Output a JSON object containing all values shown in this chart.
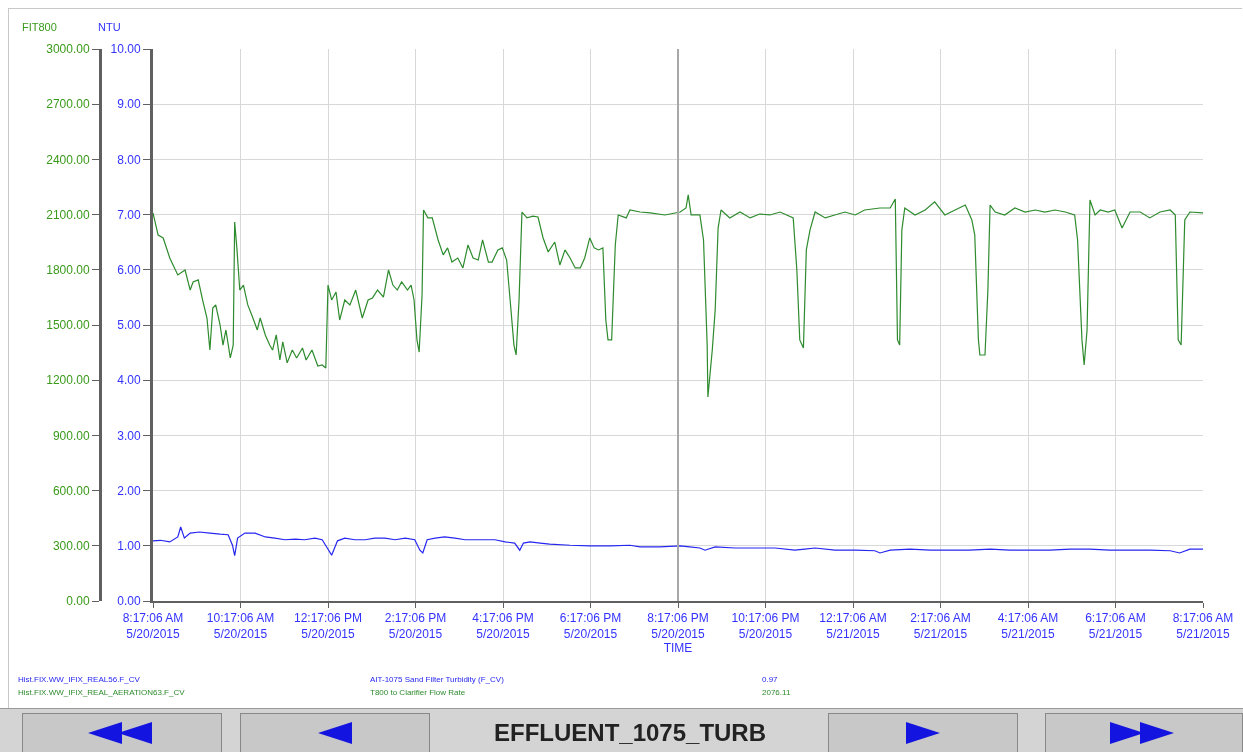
{
  "chart_data": {
    "type": "line",
    "xlabel": "TIME",
    "ylabel": "FIT800",
    "y2label": "NTU",
    "xlim": [
      "2015-05-20T08:17",
      "2015-05-21T08:17"
    ],
    "xticks": [
      {
        "value": "2015-05-20T08:17",
        "label": "8:17:06 AM\n5/20/2015"
      },
      {
        "value": "2015-05-20T10:17",
        "label": "10:17:06 AM\n5/20/2015"
      },
      {
        "value": "2015-05-20T12:17",
        "label": "12:17:06 PM\n5/20/2015"
      },
      {
        "value": "2015-05-20T14:17",
        "label": "2:17:06 PM\n5/20/2015"
      },
      {
        "value": "2015-05-20T16:17",
        "label": "4:17:06 PM\n5/20/2015"
      },
      {
        "value": "2015-05-20T18:17",
        "label": "6:17:06 PM\n5/20/2015"
      },
      {
        "value": "2015-05-20T20:17",
        "label": "8:17:06 PM\n5/20/2015"
      },
      {
        "value": "2015-05-20T22:17",
        "label": "10:17:06 PM\n5/20/2015"
      },
      {
        "value": "2015-05-21T00:17",
        "label": "12:17:06 AM\n5/21/2015"
      },
      {
        "value": "2015-05-21T02:17",
        "label": "2:17:06 AM\n5/21/2015"
      },
      {
        "value": "2015-05-21T04:17",
        "label": "4:17:06 AM\n5/21/2015"
      },
      {
        "value": "2015-05-21T06:17",
        "label": "6:17:06 AM\n5/21/2015"
      },
      {
        "value": "2015-05-21T08:17",
        "label": "8:17:06 AM\n5/21/2015"
      }
    ],
    "ylim": [
      0,
      3000
    ],
    "yticks": [
      {
        "value": 0,
        "label": "0.00"
      },
      {
        "value": 300,
        "label": "300.00"
      },
      {
        "value": 600,
        "label": "600.00"
      },
      {
        "value": 900,
        "label": "900.00"
      },
      {
        "value": 1200,
        "label": "1200.00"
      },
      {
        "value": 1500,
        "label": "1500.00"
      },
      {
        "value": 1800,
        "label": "1800.00"
      },
      {
        "value": 2100,
        "label": "2100.00"
      },
      {
        "value": 2400,
        "label": "2400.00"
      },
      {
        "value": 2700,
        "label": "2700.00"
      },
      {
        "value": 3000,
        "label": "3000.00"
      }
    ],
    "y2lim": [
      0,
      10
    ],
    "y2ticks": [
      {
        "value": 0,
        "label": "0.00"
      },
      {
        "value": 1,
        "label": "1.00"
      },
      {
        "value": 2,
        "label": "2.00"
      },
      {
        "value": 3,
        "label": "3.00"
      },
      {
        "value": 4,
        "label": "4.00"
      },
      {
        "value": 5,
        "label": "5.00"
      },
      {
        "value": 6,
        "label": "6.00"
      },
      {
        "value": 7,
        "label": "7.00"
      },
      {
        "value": 8,
        "label": "8.00"
      },
      {
        "value": 9,
        "label": "9.00"
      },
      {
        "value": 10,
        "label": "10.00"
      }
    ],
    "grid": true,
    "legend": "bottom",
    "marker": "none",
    "line_style": "solid",
    "ref_lines": [
      {
        "axis": "x",
        "value": "2015-05-20T20:17",
        "color": "#a8a8a8"
      }
    ],
    "annotations": [
      "Hist.FIX.WW_IFIX_REAL56.F_CV",
      "0.97",
      "Hist.FIX.WW_IFIX_REAL_AERATION63.F_CV",
      "2076.11",
      "EFFLUENT_1075_TURB"
    ],
    "series": [
      {
        "name": "AIT-1075 Sand Filter Turbidity (F_CV)",
        "color": "#2626f0",
        "axis": "y2",
        "x": [
          "2015-05-20T08:17",
          "2015-05-20T08:27",
          "2015-05-20T08:40",
          "2015-05-20T08:51",
          "2015-05-20T08:55",
          "2015-05-20T09:00",
          "2015-05-20T09:08",
          "2015-05-20T09:21",
          "2015-05-20T09:35",
          "2015-05-20T09:49",
          "2015-05-20T10:00",
          "2015-05-20T10:06",
          "2015-05-20T10:09",
          "2015-05-20T10:13",
          "2015-05-20T10:23",
          "2015-05-20T10:37",
          "2015-05-20T10:51",
          "2015-05-20T11:04",
          "2015-05-20T11:18",
          "2015-05-20T11:32",
          "2015-05-20T11:45",
          "2015-05-20T11:59",
          "2015-05-20T12:09",
          "2015-05-20T12:16",
          "2015-05-20T12:22",
          "2015-05-20T12:30",
          "2015-05-20T12:40",
          "2015-05-20T12:54",
          "2015-05-20T13:08",
          "2015-05-20T13:21",
          "2015-05-20T13:35",
          "2015-05-20T13:49",
          "2015-05-20T14:03",
          "2015-05-20T14:16",
          "2015-05-20T14:23",
          "2015-05-20T14:27",
          "2015-05-20T14:33",
          "2015-05-20T14:44",
          "2015-05-20T14:57",
          "2015-05-20T15:11",
          "2015-05-20T15:25",
          "2015-05-20T15:39",
          "2015-05-20T15:52",
          "2015-05-20T16:06",
          "2015-05-20T16:20",
          "2015-05-20T16:33",
          "2015-05-20T16:40",
          "2015-05-20T16:45",
          "2015-05-20T16:54",
          "2015-05-20T17:08",
          "2015-05-20T17:21",
          "2015-05-20T17:49",
          "2015-05-20T18:16",
          "2015-05-20T18:44",
          "2015-05-20T19:11",
          "2015-05-20T19:25",
          "2015-05-20T19:52",
          "2015-05-20T20:20",
          "2015-05-20T20:33",
          "2015-05-20T20:47",
          "2015-05-20T20:54",
          "2015-05-20T21:08",
          "2015-05-20T21:35",
          "2015-05-20T22:03",
          "2015-05-20T22:30",
          "2015-05-20T22:57",
          "2015-05-20T23:11",
          "2015-05-20T23:25",
          "2015-05-20T23:52",
          "2015-05-21T00:20",
          "2015-05-21T00:47",
          "2015-05-21T00:54",
          "2015-05-21T01:08",
          "2015-05-21T01:35",
          "2015-05-21T02:03",
          "2015-05-21T02:30",
          "2015-05-21T02:57",
          "2015-05-21T03:25",
          "2015-05-21T03:52",
          "2015-05-21T04:20",
          "2015-05-21T04:47",
          "2015-05-21T05:15",
          "2015-05-21T05:42",
          "2015-05-21T06:09",
          "2015-05-21T06:37",
          "2015-05-21T07:04",
          "2015-05-21T07:32",
          "2015-05-21T07:45",
          "2015-05-21T07:59",
          "2015-05-21T08:17"
        ],
        "values": [
          1.09,
          1.1,
          1.07,
          1.16,
          1.34,
          1.14,
          1.23,
          1.25,
          1.23,
          1.21,
          1.2,
          1.01,
          0.82,
          1.14,
          1.23,
          1.23,
          1.16,
          1.14,
          1.11,
          1.12,
          1.11,
          1.14,
          1.11,
          0.96,
          0.83,
          1.09,
          1.14,
          1.11,
          1.11,
          1.14,
          1.14,
          1.11,
          1.14,
          1.11,
          0.92,
          0.87,
          1.11,
          1.14,
          1.16,
          1.14,
          1.11,
          1.11,
          1.11,
          1.11,
          1.07,
          1.05,
          0.92,
          1.05,
          1.07,
          1.05,
          1.03,
          1.01,
          1.0,
          1.0,
          1.01,
          0.98,
          0.98,
          1.0,
          0.98,
          0.96,
          0.92,
          0.98,
          0.96,
          0.96,
          0.96,
          0.92,
          0.94,
          0.96,
          0.92,
          0.92,
          0.91,
          0.87,
          0.92,
          0.94,
          0.92,
          0.92,
          0.92,
          0.94,
          0.92,
          0.92,
          0.92,
          0.94,
          0.94,
          0.92,
          0.92,
          0.92,
          0.91,
          0.87,
          0.94,
          0.94
        ]
      },
      {
        "name": "T800 to Clarifier Flow Rate",
        "color": "#2e8b2e",
        "axis": "y",
        "x": [
          "2015-05-20T08:17",
          "2015-05-20T08:24",
          "2015-05-20T08:31",
          "2015-05-20T08:40",
          "2015-05-20T08:51",
          "2015-05-20T09:01",
          "2015-05-20T09:08",
          "2015-05-20T09:12",
          "2015-05-20T09:19",
          "2015-05-20T09:25",
          "2015-05-20T09:31",
          "2015-05-20T09:35",
          "2015-05-20T09:39",
          "2015-05-20T09:43",
          "2015-05-20T09:49",
          "2015-05-20T09:53",
          "2015-05-20T09:57",
          "2015-05-20T10:03",
          "2015-05-20T10:07",
          "2015-05-20T10:09",
          "2015-05-20T10:12",
          "2015-05-20T10:16",
          "2015-05-20T10:21",
          "2015-05-20T10:27",
          "2015-05-20T10:34",
          "2015-05-20T10:40",
          "2015-05-20T10:44",
          "2015-05-20T10:51",
          "2015-05-20T10:57",
          "2015-05-20T11:01",
          "2015-05-20T11:06",
          "2015-05-20T11:11",
          "2015-05-20T11:15",
          "2015-05-20T11:21",
          "2015-05-20T11:28",
          "2015-05-20T11:34",
          "2015-05-20T11:42",
          "2015-05-20T11:47",
          "2015-05-20T11:55",
          "2015-05-20T12:03",
          "2015-05-20T12:09",
          "2015-05-20T12:14",
          "2015-05-20T12:17",
          "2015-05-20T12:22",
          "2015-05-20T12:28",
          "2015-05-20T12:33",
          "2015-05-20T12:40",
          "2015-05-20T12:47",
          "2015-05-20T12:55",
          "2015-05-20T13:04",
          "2015-05-20T13:12",
          "2015-05-20T13:18",
          "2015-05-20T13:25",
          "2015-05-20T13:33",
          "2015-05-20T13:40",
          "2015-05-20T13:46",
          "2015-05-20T13:52",
          "2015-05-20T13:58",
          "2015-05-20T14:06",
          "2015-05-20T14:11",
          "2015-05-20T14:15",
          "2015-05-20T14:19",
          "2015-05-20T14:22",
          "2015-05-20T14:26",
          "2015-05-20T14:28",
          "2015-05-20T14:34",
          "2015-05-20T14:40",
          "2015-05-20T14:48",
          "2015-05-20T14:55",
          "2015-05-20T15:01",
          "2015-05-20T15:07",
          "2015-05-20T15:15",
          "2015-05-20T15:22",
          "2015-05-20T15:29",
          "2015-05-20T15:36",
          "2015-05-20T15:43",
          "2015-05-20T15:49",
          "2015-05-20T15:57",
          "2015-05-20T16:02",
          "2015-05-20T16:10",
          "2015-05-20T16:16",
          "2015-05-20T16:22",
          "2015-05-20T16:27",
          "2015-05-20T16:32",
          "2015-05-20T16:35",
          "2015-05-20T16:39",
          "2015-05-20T16:43",
          "2015-05-20T16:50",
          "2015-05-20T16:58",
          "2015-05-20T17:05",
          "2015-05-20T17:12",
          "2015-05-20T17:19",
          "2015-05-20T17:28",
          "2015-05-20T17:35",
          "2015-05-20T17:42",
          "2015-05-20T17:49",
          "2015-05-20T17:56",
          "2015-05-20T18:03",
          "2015-05-20T18:09",
          "2015-05-20T18:16",
          "2015-05-20T18:22",
          "2015-05-20T18:28",
          "2015-05-20T18:34",
          "2015-05-20T18:38",
          "2015-05-20T18:41",
          "2015-05-20T18:46",
          "2015-05-20T18:51",
          "2015-05-20T18:55",
          "2015-05-20T19:06",
          "2015-05-20T19:11",
          "2015-05-20T19:25",
          "2015-05-20T19:39",
          "2015-05-20T19:59",
          "2015-05-20T20:20",
          "2015-05-20T20:28",
          "2015-05-20T20:31",
          "2015-05-20T20:35",
          "2015-05-20T20:47",
          "2015-05-20T20:52",
          "2015-05-20T20:57",
          "2015-05-20T20:58",
          "2015-05-20T21:04",
          "2015-05-20T21:08",
          "2015-05-20T21:12",
          "2015-05-20T21:16",
          "2015-05-20T21:28",
          "2015-05-20T21:42",
          "2015-05-20T21:56",
          "2015-05-20T22:09",
          "2015-05-20T22:23",
          "2015-05-20T22:37",
          "2015-05-20T22:55",
          "2015-05-20T23:00",
          "2015-05-20T23:04",
          "2015-05-20T23:09",
          "2015-05-20T23:13",
          "2015-05-20T23:18",
          "2015-05-20T23:25",
          "2015-05-20T23:39",
          "2015-05-20T23:52",
          "2015-05-21T00:06",
          "2015-05-21T00:20",
          "2015-05-21T00:33",
          "2015-05-21T00:54",
          "2015-05-21T01:08",
          "2015-05-21T01:15",
          "2015-05-21T01:18",
          "2015-05-21T01:21",
          "2015-05-21T01:24",
          "2015-05-21T01:28",
          "2015-05-21T01:42",
          "2015-05-21T01:56",
          "2015-05-21T02:09",
          "2015-05-21T02:23",
          "2015-05-21T02:37",
          "2015-05-21T02:51",
          "2015-05-21T03:00",
          "2015-05-21T03:04",
          "2015-05-21T03:09",
          "2015-05-21T03:11",
          "2015-05-21T03:18",
          "2015-05-21T03:22",
          "2015-05-21T03:25",
          "2015-05-21T03:32",
          "2015-05-21T03:45",
          "2015-05-21T03:59",
          "2015-05-21T04:13",
          "2015-05-21T04:27",
          "2015-05-21T04:40",
          "2015-05-21T04:54",
          "2015-05-21T05:08",
          "2015-05-21T05:21",
          "2015-05-21T05:25",
          "2015-05-21T05:31",
          "2015-05-21T05:34",
          "2015-05-21T05:38",
          "2015-05-21T05:42",
          "2015-05-21T05:49",
          "2015-05-21T05:56",
          "2015-05-21T06:07",
          "2015-05-21T06:16",
          "2015-05-21T06:26",
          "2015-05-21T06:37",
          "2015-05-21T06:51",
          "2015-05-21T07:04",
          "2015-05-21T07:18",
          "2015-05-21T07:32",
          "2015-05-21T07:39",
          "2015-05-21T07:43",
          "2015-05-21T07:47",
          "2015-05-21T07:52",
          "2015-05-21T07:59",
          "2015-05-21T08:17"
        ],
        "values": [
          2109,
          1989,
          1973,
          1864,
          1772,
          1799,
          1690,
          1734,
          1745,
          1636,
          1538,
          1364,
          1592,
          1609,
          1500,
          1391,
          1473,
          1321,
          1391,
          2060,
          1919,
          1690,
          1717,
          1609,
          1538,
          1473,
          1538,
          1446,
          1391,
          1364,
          1446,
          1310,
          1408,
          1294,
          1364,
          1321,
          1375,
          1310,
          1364,
          1277,
          1283,
          1266,
          1717,
          1636,
          1679,
          1527,
          1636,
          1609,
          1690,
          1538,
          1636,
          1647,
          1690,
          1652,
          1799,
          1717,
          1690,
          1734,
          1690,
          1717,
          1636,
          1419,
          1353,
          1663,
          2125,
          2082,
          2082,
          1962,
          1881,
          1919,
          1842,
          1864,
          1810,
          1935,
          1864,
          1853,
          1962,
          1842,
          1842,
          1908,
          1919,
          1853,
          1625,
          1391,
          1337,
          1636,
          2114,
          2082,
          2092,
          2087,
          1973,
          1897,
          1951,
          1826,
          1908,
          1864,
          1810,
          1810,
          1864,
          1973,
          1919,
          1908,
          1919,
          1527,
          1419,
          1419,
          1935,
          2098,
          2082,
          2125,
          2114,
          2109,
          2098,
          2114,
          2136,
          2207,
          2098,
          2098,
          1962,
          1391,
          1109,
          1364,
          1582,
          2027,
          2125,
          2082,
          2114,
          2082,
          2103,
          2098,
          2114,
          2082,
          1799,
          1419,
          1375,
          1908,
          2016,
          2114,
          2082,
          2098,
          2114,
          2098,
          2125,
          2136,
          2136,
          2185,
          1419,
          1391,
          2016,
          2136,
          2098,
          2125,
          2169,
          2098,
          2125,
          2152,
          2071,
          1989,
          1419,
          1337,
          1337,
          1690,
          2152,
          2114,
          2098,
          2136,
          2114,
          2125,
          2114,
          2125,
          2114,
          2098,
          1962,
          1419,
          1283,
          1473,
          2179,
          2098,
          2125,
          2114,
          2125,
          2027,
          2114,
          2114,
          2082,
          2114,
          2125,
          2098,
          1419,
          1391,
          2071,
          2114,
          2109
        ]
      }
    ]
  }
}
